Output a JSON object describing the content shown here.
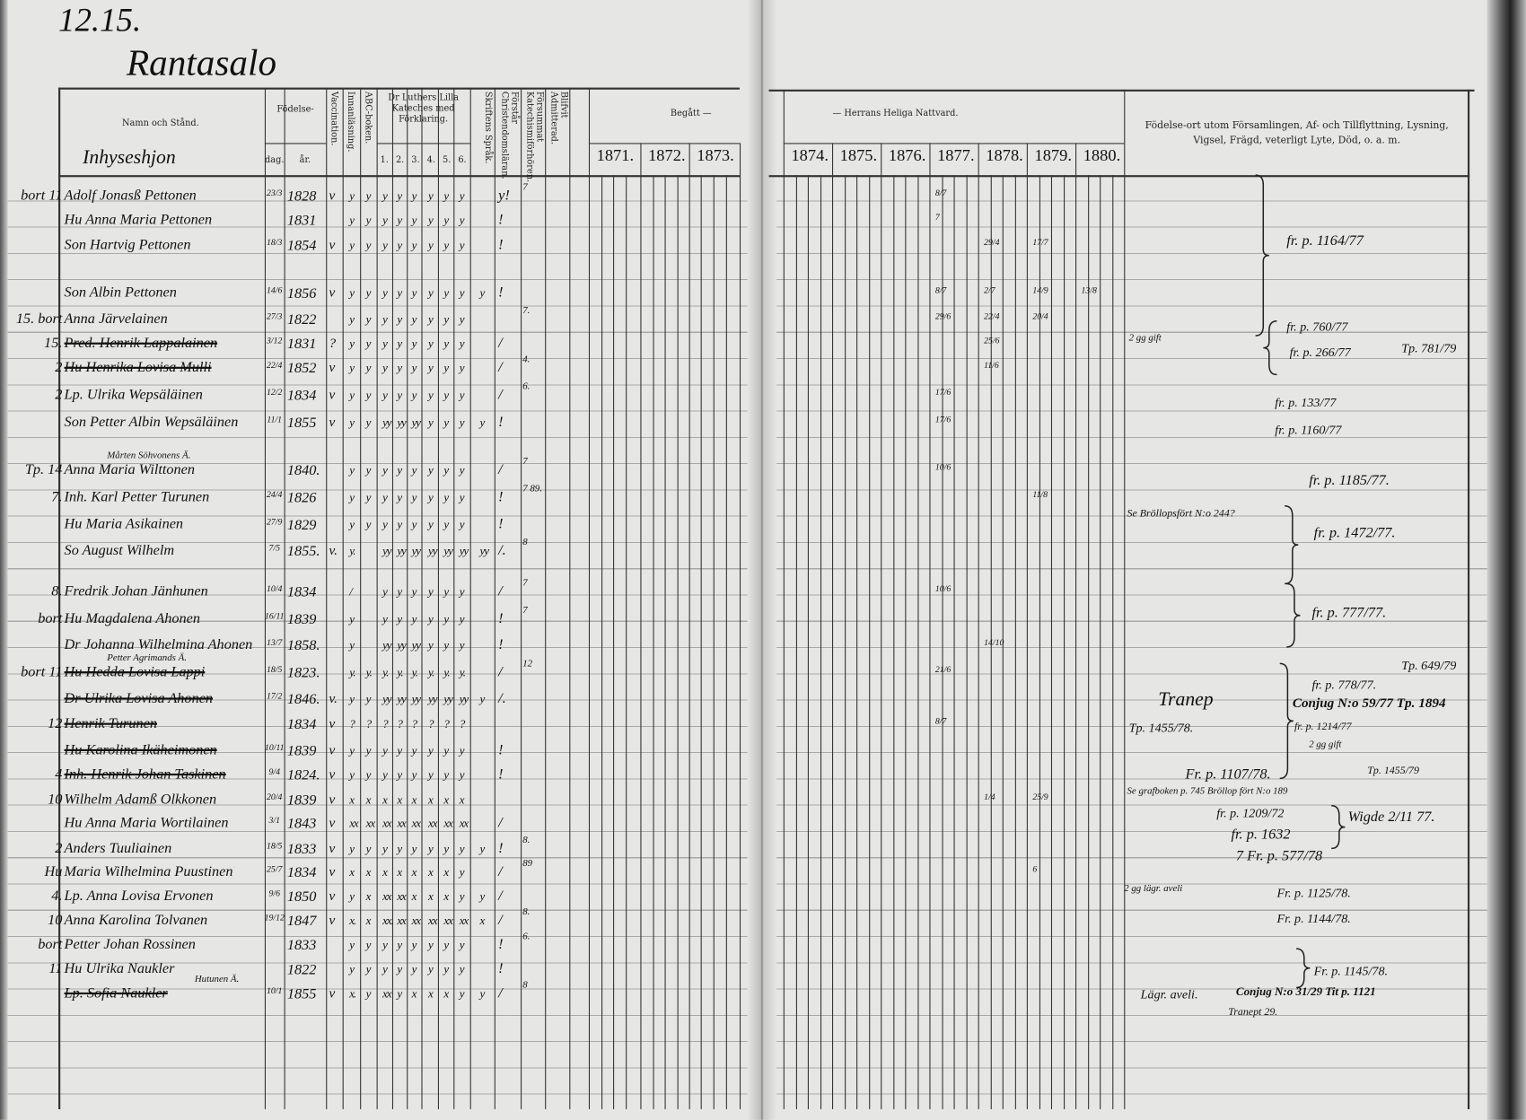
{
  "page": {
    "number": "12.15.",
    "village": "Rantasalo",
    "category": "Inhyseshjon"
  },
  "header": {
    "name": "Namn och Stånd.",
    "birth": "Födelse-",
    "day": "dag.",
    "year": "år.",
    "vaccination": "Vaccination.",
    "reading": "Innanläsning.",
    "abc": "ABC-boken.",
    "luther": "Dr Luthers Lilla Kateches med Förklaring.",
    "luther_cols": [
      "1.",
      "2.",
      "3.",
      "4.",
      "5.",
      "6."
    ],
    "scripture": "Skriftens Språk.",
    "doctrine": "Förstår Christendomsläran.",
    "hearings": "Försummat Katechismiförhören.",
    "admitted": "Blifvit Admitterad.",
    "communion_left": "Begått —",
    "communion_right": "— Herrans Heliga Nattvard.",
    "years": [
      "1871.",
      "1872.",
      "1873.",
      "1874.",
      "1875.",
      "1876.",
      "1877.",
      "1878.",
      "1879.",
      "1880."
    ],
    "remarks": "Födelse-ort utom Församlingen, Af- och Tillflyttning, Lysning, Vigsel, Frägd, veterligt Lyte, Död, o. a. m."
  },
  "entries": [
    {
      "margin": "bort 11",
      "name": "Adolf Jonasß Pettonen",
      "day": "23/3",
      "year": "1828",
      "vacc": "v",
      "marks": [
        "y",
        "y",
        "y",
        "y",
        "y",
        "y",
        "y",
        "y"
      ],
      "admitted": "y!",
      "num": "7"
    },
    {
      "margin": "",
      "name": "Hu Anna Maria Pettonen",
      "day": "",
      "year": "1831",
      "vacc": "",
      "marks": [
        "y",
        "y",
        "y",
        "y",
        "y",
        "y",
        "y",
        "y"
      ],
      "admitted": "!",
      "num": ""
    },
    {
      "margin": "",
      "name": "Son Hartvig Pettonen",
      "day": "18/3",
      "year": "1854",
      "vacc": "v",
      "marks": [
        "y",
        "y",
        "y",
        "y",
        "y",
        "y",
        "y",
        "y"
      ],
      "admitted": "!",
      "num": ""
    },
    {
      "margin": "",
      "name": "Son Albin Pettonen",
      "day": "14/6",
      "year": "1856",
      "vacc": "v",
      "marks": [
        "y",
        "y",
        "y",
        "y",
        "y",
        "y",
        "y",
        "y",
        "y"
      ],
      "admitted": "!",
      "num": ""
    },
    {
      "margin": "15. bort",
      "name": "Anna Järvelainen",
      "day": "27/3",
      "year": "1822",
      "vacc": "",
      "marks": [
        "y",
        "y",
        "y",
        "y",
        "y",
        "y",
        "y",
        "y"
      ],
      "admitted": "",
      "num": "7."
    },
    {
      "margin": "15.",
      "name": "Pred. Henrik Lappalainen",
      "struck": true,
      "day": "3/12",
      "year": "1831",
      "vacc": "?",
      "marks": [
        "y",
        "y",
        "y",
        "y",
        "y",
        "y",
        "y",
        "y"
      ],
      "admitted": "/",
      "num": ""
    },
    {
      "margin": "2",
      "name": "Hu Henrika Lovisa Mulli",
      "struck": true,
      "day": "22/4",
      "year": "1852",
      "vacc": "v",
      "marks": [
        "y",
        "y",
        "y",
        "y",
        "y",
        "y",
        "y",
        "y"
      ],
      "admitted": "/",
      "num": "4."
    },
    {
      "margin": "2",
      "name": "Lp. Ulrika Wepsäläinen",
      "day": "12/2",
      "year": "1834",
      "vacc": "v",
      "marks": [
        "y",
        "y",
        "y",
        "y",
        "y",
        "y",
        "y",
        "y"
      ],
      "admitted": "/",
      "num": "6."
    },
    {
      "margin": "",
      "name": "Son Petter Albin Wepsäläinen",
      "day": "11/1",
      "year": "1855",
      "vacc": "v",
      "marks": [
        "y",
        "y",
        "yy",
        "yy",
        "yy",
        "y",
        "y",
        "y",
        "y"
      ],
      "admitted": "!",
      "num": ""
    },
    {
      "margin": "Tp. 14",
      "above": "Mårten Söhvonens Ä.",
      "name": "Anna Maria Wilttonen",
      "day": "",
      "year": "1840.",
      "vacc": "",
      "marks": [
        "y",
        "y",
        "y",
        "y",
        "y",
        "y",
        "y",
        "y"
      ],
      "admitted": "/",
      "num": "7"
    },
    {
      "margin": "7.",
      "name": "Inh. Karl Petter Turunen",
      "day": "24/4",
      "year": "1826",
      "vacc": "",
      "marks": [
        "y",
        "y",
        "y",
        "y",
        "y",
        "y",
        "y",
        "y"
      ],
      "admitted": "!",
      "num": "7 89."
    },
    {
      "margin": "",
      "name": "Hu Maria Asikainen",
      "day": "27/9",
      "year": "1829",
      "vacc": "",
      "marks": [
        "y",
        "y",
        "y",
        "y",
        "y",
        "y",
        "y",
        "y"
      ],
      "admitted": "!",
      "num": ""
    },
    {
      "margin": "",
      "name": "So August Wilhelm",
      "day": "7/5",
      "year": "1855.",
      "vacc": "v.",
      "marks": [
        "y.",
        "",
        "yy",
        "yy",
        "yy",
        "yy",
        "yy",
        "yy",
        "yy"
      ],
      "admitted": "/.",
      "num": "8"
    },
    {
      "margin": "8.",
      "name": "Fredrik Johan Jänhunen",
      "day": "10/4",
      "year": "1834",
      "vacc": "",
      "marks": [
        "/",
        "",
        "y",
        "y",
        "y",
        "y",
        "y",
        "y"
      ],
      "admitted": "/",
      "num": "7"
    },
    {
      "margin": "bort",
      "name": "Hu Magdalena Ahonen",
      "day": "16/11",
      "year": "1839",
      "vacc": "",
      "marks": [
        "y",
        "",
        "y",
        "y",
        "y",
        "y",
        "y",
        "y"
      ],
      "admitted": "!",
      "num": "7"
    },
    {
      "margin": "",
      "name": "Dr Johanna Wilhelmina Ahonen",
      "day": "13/7",
      "year": "1858.",
      "vacc": "",
      "marks": [
        "y",
        "",
        "yy",
        "yy",
        "yy",
        "y",
        "y",
        "y"
      ],
      "admitted": "!",
      "num": ""
    },
    {
      "margin": "bort 11",
      "above": "Petter Agrimands Ä.",
      "name": "Hu Hedda Lovisa Lappi",
      "struck": true,
      "day": "18/5",
      "year": "1823.",
      "vacc": "",
      "marks": [
        "y.",
        "y.",
        "y.",
        "y.",
        "y.",
        "y.",
        "y.",
        "y."
      ],
      "admitted": "/",
      "num": "12"
    },
    {
      "margin": "",
      "name": "Dr Ulrika Lovisa Ahonen",
      "struck": true,
      "day": "17/2",
      "year": "1846.",
      "vacc": "v.",
      "marks": [
        "y",
        "y",
        "yy",
        "yy",
        "yy",
        "yy",
        "yy",
        "yy",
        "y"
      ],
      "admitted": "/.",
      "num": ""
    },
    {
      "margin": "12",
      "name": "Henrik Turunen",
      "struck": true,
      "day": "",
      "year": "1834",
      "vacc": "v",
      "marks": [
        "?",
        "?",
        "?",
        "?",
        "?",
        "?",
        "?",
        "?"
      ],
      "admitted": "",
      "num": ""
    },
    {
      "margin": "",
      "name": "Hu Karolina Ikäheimonen",
      "struck": true,
      "day": "10/11",
      "year": "1839",
      "vacc": "v",
      "marks": [
        "y",
        "y",
        "y",
        "y",
        "y",
        "y",
        "y",
        "y"
      ],
      "admitted": "!",
      "num": ""
    },
    {
      "margin": "4",
      "name": "Inh. Henrik Johan Taskinen",
      "struck": true,
      "day": "9/4",
      "year": "1824.",
      "vacc": "v",
      "marks": [
        "y",
        "y",
        "y",
        "y",
        "y",
        "y",
        "y",
        "y"
      ],
      "admitted": "!",
      "num": ""
    },
    {
      "margin": "10",
      "name": "Wilhelm Adamß Olkkonen",
      "day": "20/4",
      "year": "1839",
      "vacc": "v",
      "marks": [
        "x",
        "x",
        "x",
        "x",
        "x",
        "x",
        "x",
        "x"
      ],
      "admitted": "",
      "num": ""
    },
    {
      "margin": "",
      "name": "Hu Anna Maria Wortilainen",
      "day": "3/1",
      "year": "1843",
      "vacc": "v",
      "marks": [
        "xx",
        "xx",
        "xx",
        "xx",
        "xx",
        "xx",
        "xx",
        "xx"
      ],
      "admitted": "/",
      "num": ""
    },
    {
      "margin": "2",
      "name": "Anders Tuuliainen",
      "day": "18/5",
      "year": "1833",
      "vacc": "v",
      "marks": [
        "y",
        "y",
        "y",
        "y",
        "y",
        "y",
        "y",
        "y",
        "y"
      ],
      "admitted": "!",
      "num": "8."
    },
    {
      "margin": "Hu",
      "name": "Maria Wilhelmina Puustinen",
      "day": "25/7",
      "year": "1834",
      "vacc": "v",
      "marks": [
        "x",
        "x",
        "x",
        "x",
        "x",
        "x",
        "x",
        "y"
      ],
      "admitted": "/",
      "num": "89"
    },
    {
      "margin": "4.",
      "name": "Lp. Anna Lovisa Ervonen",
      "day": "9/6",
      "year": "1850",
      "vacc": "v",
      "marks": [
        "y",
        "x",
        "xx",
        "xx",
        "x",
        "x",
        "x",
        "y",
        "y"
      ],
      "admitted": "/",
      "num": ""
    },
    {
      "margin": "10",
      "name": "Anna Karolina Tolvanen",
      "day": "19/12",
      "year": "1847",
      "vacc": "v",
      "marks": [
        "x.",
        "x",
        "xx.",
        "xx",
        "xx",
        "xx",
        "xx",
        "xx",
        "x"
      ],
      "admitted": "/",
      "num": "8."
    },
    {
      "margin": "bort",
      "name": "Petter Johan Rossinen",
      "day": "",
      "year": "1833",
      "vacc": "",
      "marks": [
        "y",
        "y",
        "y",
        "y",
        "y",
        "y",
        "y",
        "y"
      ],
      "admitted": "!",
      "num": "6."
    },
    {
      "margin": "11",
      "name": "Hu Ulrika Naukler",
      "day": "",
      "year": "1822",
      "vacc": "",
      "marks": [
        "y",
        "y",
        "y",
        "y",
        "y",
        "y",
        "y",
        "y"
      ],
      "admitted": "!",
      "num": ""
    },
    {
      "margin": "",
      "above": "Hutunen Ä.",
      "name": "Lp. Sofia Naukler",
      "struck": true,
      "day": "10/1",
      "year": "1855",
      "vacc": "v",
      "marks": [
        "x.",
        "y",
        "xx",
        "y",
        "x",
        "x",
        "x",
        "y",
        "y"
      ],
      "admitted": "/",
      "num": "8"
    }
  ],
  "communion": [
    {
      "row": 0,
      "year": "1877",
      "text": "8/7"
    },
    {
      "row": 1,
      "year": "1877",
      "text": "7"
    },
    {
      "row": 2,
      "year": "1878",
      "text": "29/4"
    },
    {
      "row": 2,
      "year": "1879",
      "text": "17/7"
    },
    {
      "row": 3,
      "year": "1877",
      "text": "8/7"
    },
    {
      "row": 3,
      "year": "1878",
      "text": "2/7"
    },
    {
      "row": 3,
      "year": "1879",
      "text": "14/9"
    },
    {
      "row": 3,
      "year": "1880",
      "text": "13/8"
    },
    {
      "row": 4,
      "year": "1877",
      "text": "29/6"
    },
    {
      "row": 4,
      "year": "1878",
      "text": "22/4"
    },
    {
      "row": 4,
      "year": "1879",
      "text": "20/4"
    },
    {
      "row": 5,
      "year": "1878",
      "text": "25/6"
    },
    {
      "row": 6,
      "year": "1878",
      "text": "11/6"
    },
    {
      "row": 7,
      "year": "1877",
      "text": "17/6"
    },
    {
      "row": 8,
      "year": "1877",
      "text": "17/6"
    },
    {
      "row": 9,
      "year": "1877",
      "text": "10/6"
    },
    {
      "row": 10,
      "year": "1879",
      "text": "11/8"
    },
    {
      "row": 13,
      "year": "1877",
      "text": "10/6"
    },
    {
      "row": 15,
      "year": "1878",
      "text": "14/10"
    },
    {
      "row": 16,
      "year": "1877",
      "text": "21/6"
    },
    {
      "row": 18,
      "year": "1877",
      "text": "8/7"
    },
    {
      "row": 21,
      "year": "1878",
      "text": "1/4"
    },
    {
      "row": 21,
      "year": "1879",
      "text": "25/9"
    },
    {
      "row": 24,
      "year": "1879",
      "text": "6"
    }
  ],
  "notes": [
    "fr. p. 1164/77",
    "2 gg gift",
    "fr. p. 760/77",
    "fr. p. 266/77",
    "Tp. 781/79",
    "fr. p. 133/77",
    "fr. p. 1160/77",
    "fr. p. 1185/77.",
    "Se Bröllopsfört N:o 244?",
    "fr. p. 1472/77.",
    "fr. p. 777/77.",
    "Tp. 649/79",
    "fr. p. 778/77.",
    "Conjug N:o 59/77 Tp. 1894",
    "Tranep",
    "Tp. 1455/78.",
    "fr. p. 1214/77",
    "2 gg gift",
    "Fr. p. 1107/78.",
    "Tp. 1455/79",
    "Se grafboken p. 745 Bröllop fört N:o 189",
    "fr. p. 1209/72",
    "Wigde 2/11 77.",
    "fr. p. 1632",
    "7 Fr. p. 577/78",
    "2 gg lägr. aveli",
    "Fr. p. 1125/78.",
    "Fr. p. 1144/78.",
    "Fr. p. 1145/78.",
    "Lägr. aveli.",
    "Conjug N:o 31/29 Tit p. 1121",
    "Tranept 29."
  ]
}
